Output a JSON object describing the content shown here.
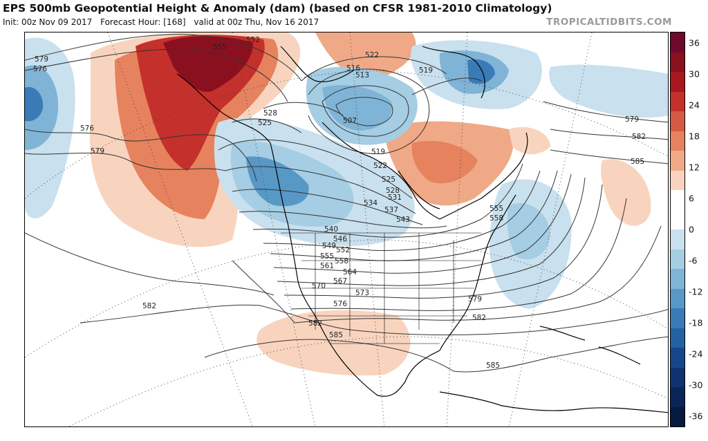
{
  "header": {
    "title": "EPS 500mb Geopotential Height & Anomaly (dam) (based on CFSR 1981-2010 Climatology)",
    "init": "Init: 00z Nov 09 2017",
    "forecast": "Forecast Hour: [168]",
    "valid": "valid at 00z Thu, Nov 16 2017",
    "brand": "TROPICALTIDBITS.COM"
  },
  "colorbar": {
    "ticks": [
      "36",
      "30",
      "24",
      "18",
      "12",
      "6",
      "0",
      "-6",
      "-12",
      "-18",
      "-24",
      "-30",
      "-36"
    ],
    "colors": [
      "#6d0a2e",
      "#8a1020",
      "#a8181f",
      "#c4302b",
      "#d65a43",
      "#e6825e",
      "#f0a987",
      "#f8d4bf",
      "#ffffff",
      "#ffffff",
      "#c9e0ee",
      "#a5cde3",
      "#7fb4d6",
      "#5898c6",
      "#3a7bb7",
      "#2461a2",
      "#17478a",
      "#0e3370",
      "#0a2658",
      "#061a3f"
    ]
  },
  "contour_labels": [
    "579",
    "576",
    "576",
    "579",
    "555",
    "552",
    "522",
    "516",
    "513",
    "519",
    "528",
    "525",
    "507",
    "519",
    "522",
    "525",
    "528",
    "531",
    "534",
    "537",
    "543",
    "540",
    "546",
    "549",
    "552",
    "555",
    "558",
    "561",
    "564",
    "567",
    "570",
    "573",
    "576",
    "579",
    "582",
    "582",
    "585",
    "585",
    "582",
    "555",
    "558",
    "579",
    "582",
    "585"
  ]
}
